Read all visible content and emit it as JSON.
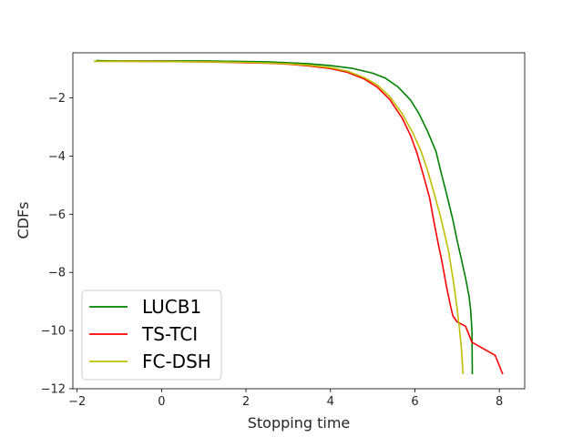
{
  "chart_data": {
    "type": "line",
    "title": "",
    "xlabel": "Stopping time",
    "ylabel": "CDFs",
    "xlim": [
      -2.1,
      8.6
    ],
    "ylim": [
      -12,
      -0.45
    ],
    "xticks": [
      -2,
      0,
      2,
      4,
      6,
      8
    ],
    "yticks": [
      -12,
      -10,
      -8,
      -6,
      -4,
      -2
    ],
    "grid": false,
    "legend_position": "lower-left",
    "series": [
      {
        "name": "LUCB1",
        "color": "#008000",
        "x": [
          -1.55,
          -1.0,
          0.0,
          1.0,
          2.0,
          2.5,
          3.0,
          3.5,
          4.0,
          4.5,
          5.0,
          5.3,
          5.6,
          5.9,
          6.1,
          6.3,
          6.5,
          6.6,
          6.75,
          6.9,
          7.0,
          7.1,
          7.2,
          7.28,
          7.32,
          7.35,
          7.36
        ],
        "y": [
          -0.72,
          -0.73,
          -0.73,
          -0.73,
          -0.75,
          -0.76,
          -0.79,
          -0.83,
          -0.89,
          -0.98,
          -1.15,
          -1.32,
          -1.62,
          -2.08,
          -2.55,
          -3.15,
          -3.85,
          -4.45,
          -5.3,
          -6.2,
          -6.9,
          -7.55,
          -8.2,
          -8.8,
          -9.3,
          -10.0,
          -11.5
        ]
      },
      {
        "name": "TS-TCI",
        "color": "#ff0000",
        "x": [
          -1.6,
          -1.0,
          0.0,
          1.0,
          2.0,
          2.5,
          3.0,
          3.5,
          4.0,
          4.4,
          4.8,
          5.1,
          5.4,
          5.7,
          5.9,
          6.05,
          6.2,
          6.35,
          6.45,
          6.55,
          6.65,
          6.7,
          6.75,
          6.8,
          6.85,
          6.9,
          7.0,
          7.2,
          7.35,
          7.9,
          8.08
        ],
        "y": [
          -0.74,
          -0.74,
          -0.75,
          -0.76,
          -0.79,
          -0.81,
          -0.84,
          -0.9,
          -0.99,
          -1.12,
          -1.35,
          -1.62,
          -2.05,
          -2.7,
          -3.3,
          -3.9,
          -4.65,
          -5.45,
          -6.25,
          -7.0,
          -7.7,
          -8.1,
          -8.5,
          -8.85,
          -9.2,
          -9.5,
          -9.7,
          -9.85,
          -10.4,
          -10.85,
          -11.5
        ]
      },
      {
        "name": "FC-DSH",
        "color": "#bfbf00",
        "x": [
          -1.6,
          -1.0,
          0.0,
          1.0,
          2.0,
          2.5,
          3.0,
          3.5,
          4.0,
          4.4,
          4.8,
          5.1,
          5.4,
          5.7,
          5.95,
          6.15,
          6.3,
          6.45,
          6.6,
          6.7,
          6.8,
          6.85,
          6.9,
          6.95,
          7.0,
          7.05,
          7.1,
          7.14
        ],
        "y": [
          -0.74,
          -0.74,
          -0.75,
          -0.76,
          -0.78,
          -0.8,
          -0.83,
          -0.88,
          -0.96,
          -1.08,
          -1.3,
          -1.55,
          -1.95,
          -2.55,
          -3.2,
          -3.85,
          -4.5,
          -5.25,
          -6.05,
          -6.65,
          -7.3,
          -7.75,
          -8.2,
          -8.7,
          -9.25,
          -9.85,
          -10.6,
          -11.5
        ]
      }
    ]
  }
}
